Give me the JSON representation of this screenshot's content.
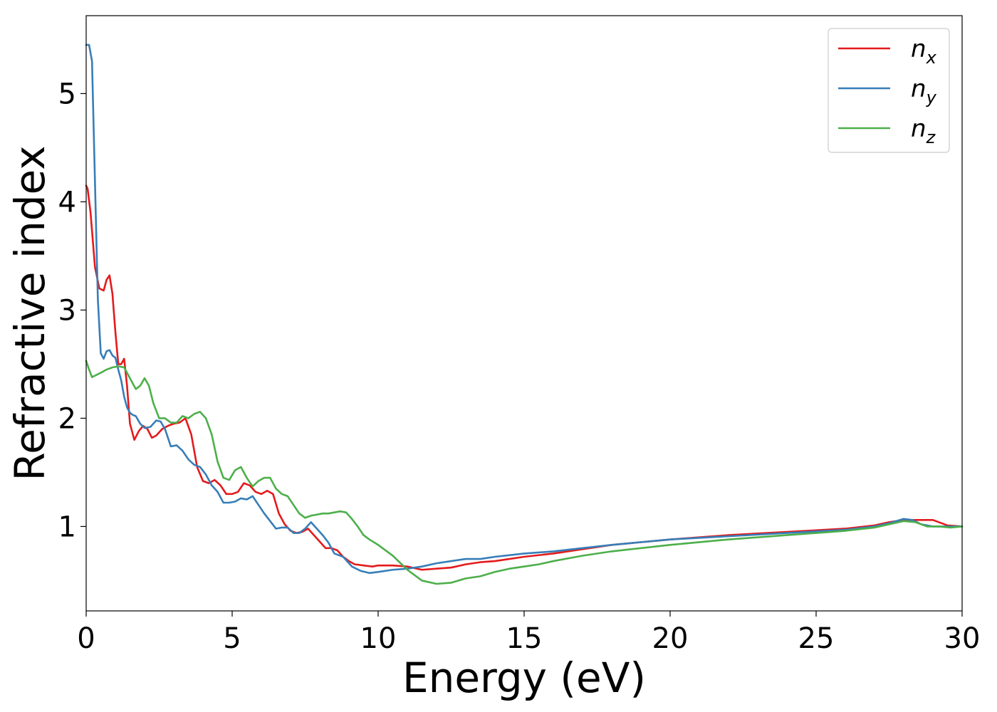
{
  "chart_data": {
    "type": "line",
    "xlabel": "Energy (eV)",
    "ylabel": "Refractive index",
    "xlim": [
      0,
      30
    ],
    "ylim": [
      0.22,
      5.72
    ],
    "xticks": [
      "0",
      "5",
      "10",
      "15",
      "20",
      "25",
      "30"
    ],
    "yticks": [
      "1",
      "2",
      "3",
      "4",
      "5"
    ],
    "grid": false,
    "legend_position": "top-right",
    "series": [
      {
        "name": "n_x",
        "label_base": "n",
        "label_sub": "x",
        "color": "#e41a1c",
        "x": [
          0,
          0.05,
          0.15,
          0.3,
          0.45,
          0.6,
          0.7,
          0.8,
          0.9,
          1.0,
          1.1,
          1.2,
          1.3,
          1.4,
          1.5,
          1.65,
          1.8,
          1.95,
          2.1,
          2.25,
          2.4,
          2.6,
          2.8,
          3.0,
          3.2,
          3.4,
          3.6,
          3.8,
          4.0,
          4.2,
          4.4,
          4.6,
          4.8,
          5.0,
          5.2,
          5.4,
          5.6,
          5.8,
          6.0,
          6.2,
          6.4,
          6.6,
          6.8,
          7.0,
          7.2,
          7.4,
          7.6,
          7.8,
          8.0,
          8.2,
          8.4,
          8.6,
          8.8,
          9.0,
          9.2,
          9.5,
          9.8,
          10.0,
          10.5,
          11.0,
          11.5,
          12.0,
          12.5,
          13.0,
          13.5,
          14.0,
          15.0,
          16.0,
          17.0,
          18.0,
          20.0,
          22.0,
          24.0,
          26.0,
          27.0,
          27.5,
          28.0,
          28.5,
          29.0,
          29.5,
          30.0
        ],
        "y": [
          4.15,
          4.12,
          3.9,
          3.4,
          3.2,
          3.18,
          3.28,
          3.32,
          3.15,
          2.8,
          2.5,
          2.5,
          2.55,
          2.3,
          1.95,
          1.8,
          1.88,
          1.93,
          1.9,
          1.82,
          1.84,
          1.9,
          1.93,
          1.95,
          1.96,
          2.0,
          1.85,
          1.55,
          1.42,
          1.4,
          1.43,
          1.38,
          1.3,
          1.3,
          1.32,
          1.4,
          1.38,
          1.32,
          1.3,
          1.33,
          1.3,
          1.12,
          1.02,
          0.96,
          0.94,
          0.95,
          0.98,
          0.92,
          0.86,
          0.8,
          0.8,
          0.78,
          0.72,
          0.68,
          0.65,
          0.64,
          0.63,
          0.64,
          0.64,
          0.63,
          0.6,
          0.61,
          0.62,
          0.65,
          0.67,
          0.68,
          0.72,
          0.75,
          0.79,
          0.83,
          0.88,
          0.92,
          0.95,
          0.98,
          1.01,
          1.04,
          1.06,
          1.06,
          1.06,
          1.01,
          1.0
        ]
      },
      {
        "name": "n_y",
        "label_base": "n",
        "label_sub": "y",
        "color": "#377eb8",
        "x": [
          0,
          0.1,
          0.2,
          0.3,
          0.4,
          0.5,
          0.6,
          0.7,
          0.8,
          0.9,
          1.0,
          1.1,
          1.2,
          1.3,
          1.4,
          1.5,
          1.6,
          1.7,
          1.85,
          2.0,
          2.2,
          2.4,
          2.55,
          2.7,
          2.9,
          3.1,
          3.3,
          3.5,
          3.7,
          3.9,
          4.1,
          4.3,
          4.5,
          4.7,
          4.9,
          5.1,
          5.3,
          5.5,
          5.7,
          5.9,
          6.1,
          6.3,
          6.5,
          6.7,
          6.9,
          7.1,
          7.3,
          7.5,
          7.7,
          7.9,
          8.1,
          8.3,
          8.5,
          8.8,
          9.1,
          9.4,
          9.7,
          10.0,
          10.5,
          11.0,
          11.5,
          12.0,
          12.5,
          13.0,
          13.5,
          14.0,
          15.0,
          16.0,
          17.0,
          18.0,
          20.0,
          22.0,
          24.0,
          26.0,
          27.0,
          27.5,
          28.0,
          28.3,
          28.6,
          29.0,
          29.5,
          30.0
        ],
        "y": [
          5.45,
          5.45,
          5.3,
          4.2,
          3.1,
          2.6,
          2.55,
          2.62,
          2.63,
          2.58,
          2.56,
          2.45,
          2.35,
          2.2,
          2.1,
          2.05,
          2.03,
          2.02,
          1.95,
          1.91,
          1.92,
          1.98,
          1.97,
          1.9,
          1.74,
          1.75,
          1.7,
          1.62,
          1.57,
          1.55,
          1.48,
          1.38,
          1.32,
          1.22,
          1.22,
          1.23,
          1.26,
          1.25,
          1.28,
          1.2,
          1.12,
          1.05,
          0.98,
          0.99,
          0.99,
          0.94,
          0.94,
          0.98,
          1.04,
          0.98,
          0.92,
          0.85,
          0.75,
          0.72,
          0.63,
          0.59,
          0.57,
          0.58,
          0.6,
          0.61,
          0.63,
          0.66,
          0.68,
          0.7,
          0.7,
          0.72,
          0.75,
          0.77,
          0.8,
          0.83,
          0.88,
          0.91,
          0.94,
          0.97,
          1.0,
          1.03,
          1.07,
          1.06,
          1.02,
          1.0,
          1.0,
          1.0
        ]
      },
      {
        "name": "n_z",
        "label_base": "n",
        "label_sub": "z",
        "color": "#4daf4a",
        "x": [
          0,
          0.1,
          0.2,
          0.35,
          0.5,
          0.7,
          0.9,
          1.1,
          1.3,
          1.5,
          1.7,
          1.85,
          2.0,
          2.15,
          2.3,
          2.5,
          2.7,
          2.9,
          3.1,
          3.3,
          3.5,
          3.7,
          3.9,
          4.1,
          4.3,
          4.5,
          4.7,
          4.9,
          5.1,
          5.3,
          5.5,
          5.7,
          5.9,
          6.1,
          6.3,
          6.5,
          6.7,
          6.9,
          7.1,
          7.3,
          7.5,
          7.7,
          7.9,
          8.1,
          8.3,
          8.5,
          8.7,
          8.9,
          9.1,
          9.3,
          9.5,
          9.7,
          10.0,
          10.5,
          11.0,
          11.5,
          12.0,
          12.5,
          13.0,
          13.5,
          14.0,
          14.5,
          15.0,
          15.5,
          16.0,
          17.0,
          18.0,
          20.0,
          22.0,
          24.0,
          26.0,
          27.0,
          27.5,
          28.0,
          28.4,
          28.8,
          29.2,
          29.6,
          30.0
        ],
        "y": [
          2.53,
          2.45,
          2.38,
          2.4,
          2.42,
          2.45,
          2.47,
          2.48,
          2.47,
          2.37,
          2.27,
          2.3,
          2.37,
          2.3,
          2.14,
          2.0,
          2.0,
          1.96,
          1.96,
          2.02,
          2.0,
          2.04,
          2.06,
          2.0,
          1.85,
          1.6,
          1.45,
          1.43,
          1.52,
          1.55,
          1.45,
          1.37,
          1.42,
          1.45,
          1.45,
          1.35,
          1.3,
          1.28,
          1.2,
          1.12,
          1.08,
          1.1,
          1.11,
          1.12,
          1.12,
          1.13,
          1.14,
          1.13,
          1.07,
          1.0,
          0.92,
          0.88,
          0.83,
          0.73,
          0.6,
          0.5,
          0.47,
          0.48,
          0.52,
          0.54,
          0.58,
          0.61,
          0.63,
          0.65,
          0.68,
          0.73,
          0.77,
          0.83,
          0.88,
          0.92,
          0.96,
          0.99,
          1.02,
          1.05,
          1.04,
          1.0,
          1.0,
          0.99,
          1.0
        ]
      }
    ]
  }
}
